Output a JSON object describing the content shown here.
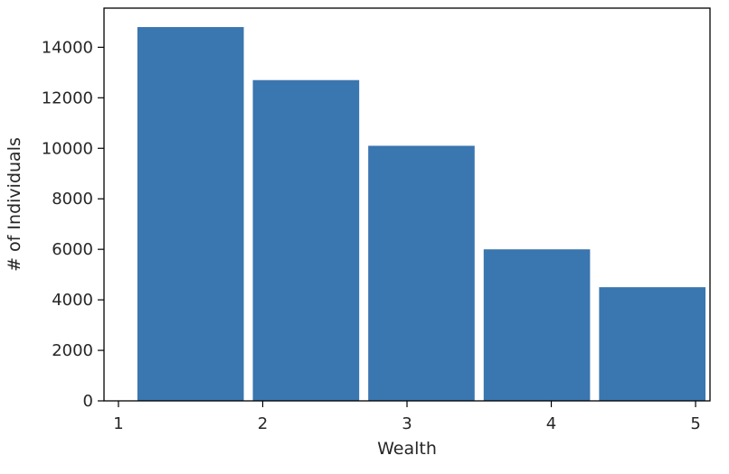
{
  "chart_data": {
    "type": "bar",
    "title": "",
    "xlabel": "Wealth",
    "ylabel": "# of Individuals",
    "bars": [
      {
        "x_start": 1.1,
        "x_end": 1.9,
        "value": 14800
      },
      {
        "x_start": 1.9,
        "x_end": 2.7,
        "value": 12700
      },
      {
        "x_start": 2.7,
        "x_end": 3.5,
        "value": 10100
      },
      {
        "x_start": 3.5,
        "x_end": 4.3,
        "value": 6000
      },
      {
        "x_start": 4.3,
        "x_end": 5.1,
        "value": 4500
      }
    ],
    "xticks": [
      1,
      2,
      3,
      4,
      5
    ],
    "yticks": [
      0,
      2000,
      4000,
      6000,
      8000,
      10000,
      12000,
      14000
    ],
    "xlim": [
      0.9,
      5.1
    ],
    "ylim": [
      0,
      15550
    ],
    "grid": false,
    "bar_color": "#3a76af"
  }
}
